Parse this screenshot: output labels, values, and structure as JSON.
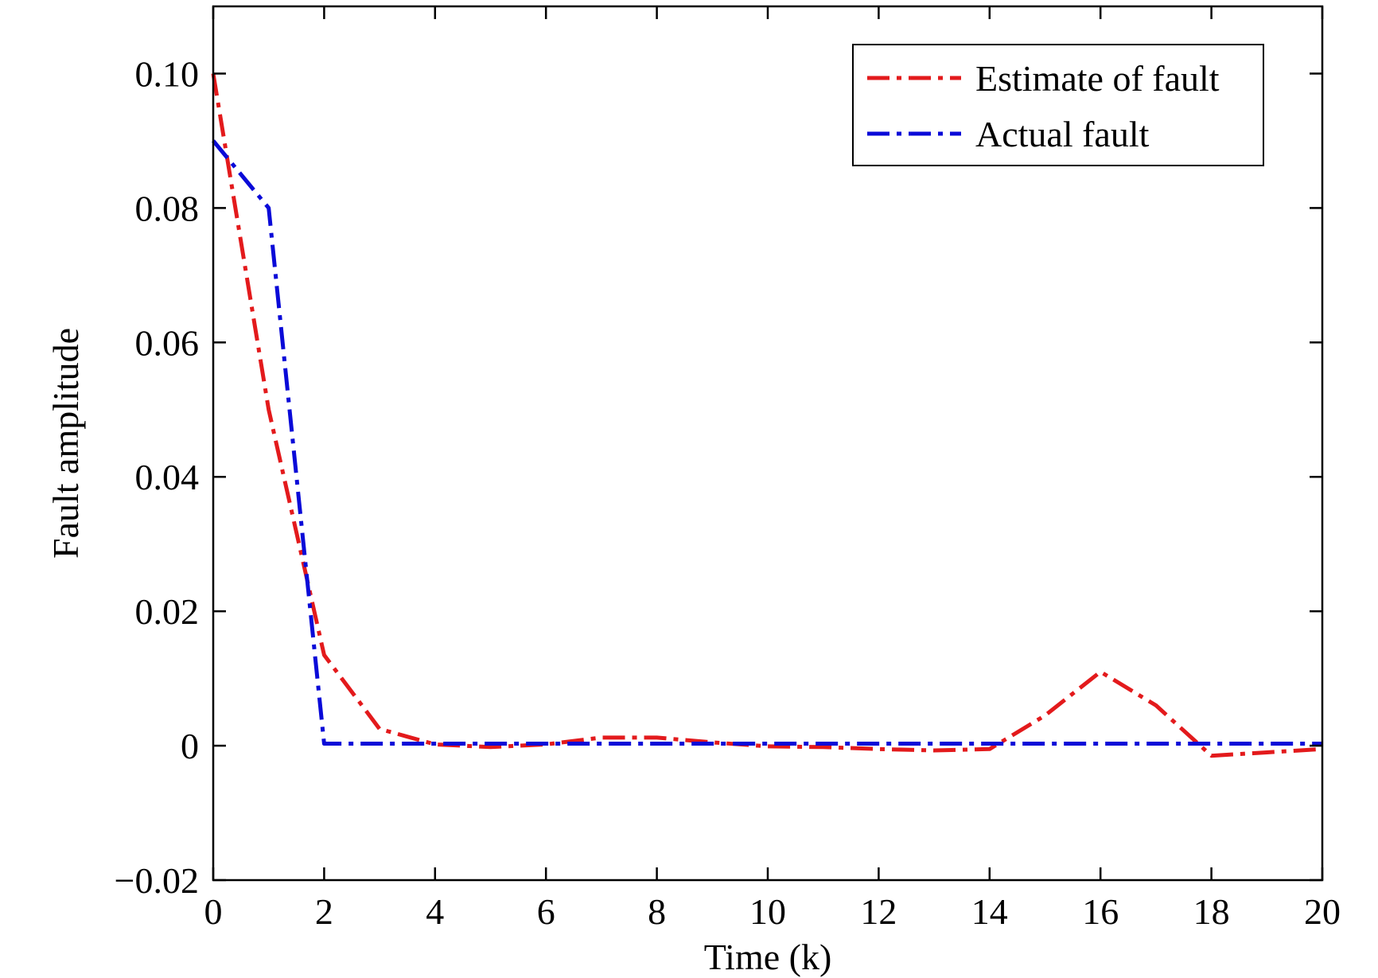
{
  "chart_data": {
    "type": "line",
    "title": "",
    "xlabel": "Time (k)",
    "ylabel": "Fault amplitude",
    "xlim": [
      0,
      20
    ],
    "ylim": [
      -0.02,
      0.11
    ],
    "x_ticks": [
      0,
      2,
      4,
      6,
      8,
      10,
      12,
      14,
      16,
      18,
      20
    ],
    "x_tick_labels": [
      "0",
      "2",
      "4",
      "6",
      "8",
      "10",
      "12",
      "14",
      "16",
      "18",
      "20"
    ],
    "y_ticks": [
      -0.02,
      0,
      0.02,
      0.04,
      0.06,
      0.08,
      0.1
    ],
    "y_tick_labels": [
      "−0.02",
      "0",
      "0.02",
      "0.04",
      "0.06",
      "0.08",
      "0.10"
    ],
    "grid": false,
    "legend_position": "top-right",
    "series": [
      {
        "name": "Estimate of fault",
        "color": "#e31a1c",
        "line_style": "dash-dot",
        "x": [
          0,
          1,
          2,
          3,
          4,
          5,
          6,
          7,
          8,
          9,
          10,
          11,
          12,
          13,
          14,
          15,
          16,
          17,
          18,
          19,
          20
        ],
        "y": [
          0.1,
          0.05,
          0.0135,
          0.0025,
          0.0002,
          -0.0002,
          0.0002,
          0.0012,
          0.0012,
          0.0005,
          -0.0001,
          -0.0002,
          -0.0005,
          -0.0007,
          -0.0005,
          0.0045,
          0.011,
          0.006,
          -0.0015,
          -0.001,
          -0.0005
        ]
      },
      {
        "name": "Actual fault",
        "color": "#0a0ad8",
        "line_style": "dash-dot",
        "x": [
          0,
          1,
          2,
          3,
          4,
          5,
          6,
          7,
          8,
          9,
          10,
          11,
          12,
          13,
          14,
          15,
          16,
          17,
          18,
          19,
          20
        ],
        "y": [
          0.09,
          0.08,
          0.0003,
          0.0003,
          0.0003,
          0.0003,
          0.0003,
          0.0003,
          0.0003,
          0.0003,
          0.0003,
          0.0003,
          0.0003,
          0.0003,
          0.0003,
          0.0003,
          0.0003,
          0.0003,
          0.0003,
          0.0003,
          0.0003
        ]
      }
    ]
  }
}
